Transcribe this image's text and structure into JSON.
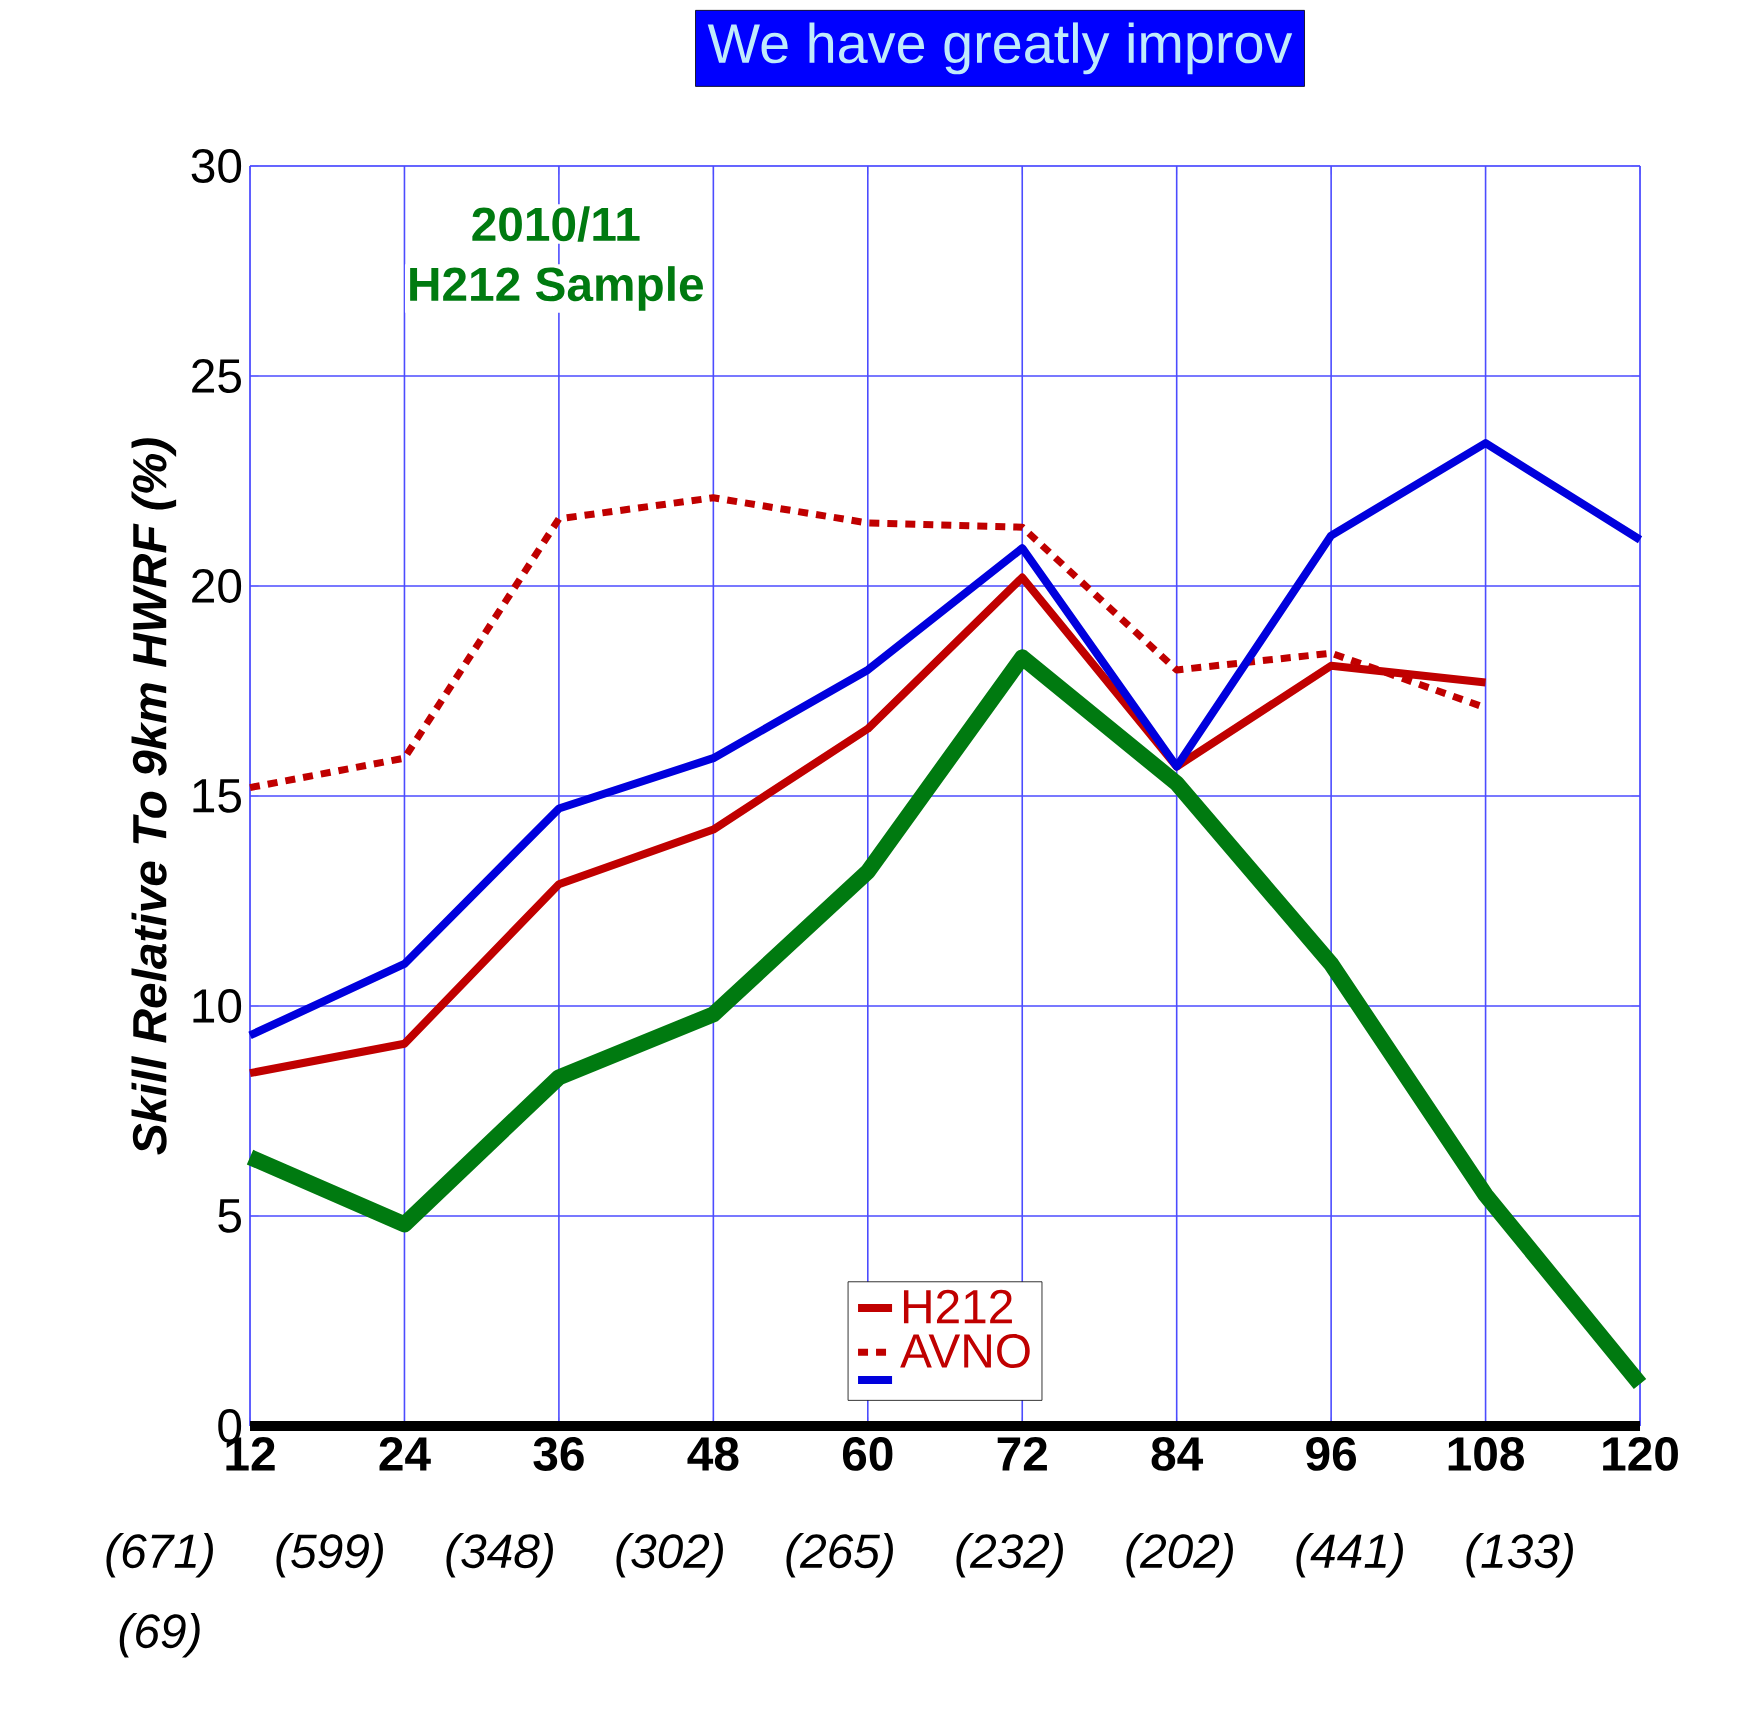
{
  "chart_data": {
    "type": "line",
    "ylabel": "Skill Relative To 9km HWRF (%)",
    "x": [
      12,
      24,
      36,
      48,
      60,
      72,
      84,
      96,
      108,
      120
    ],
    "xlim": [
      12,
      120
    ],
    "xticks": [
      12,
      24,
      36,
      48,
      60,
      72,
      84,
      96,
      108,
      120
    ],
    "ylim": [
      0,
      30
    ],
    "yticks": [
      0,
      5,
      10,
      15,
      20,
      25,
      30
    ],
    "grid": true,
    "legend": "bottom",
    "marker": "none",
    "series": [
      {
        "name": "H212",
        "color": "#c00000",
        "line_style": "solid",
        "values": [
          8.4,
          9.1,
          12.9,
          14.2,
          16.6,
          20.2,
          15.7,
          18.1,
          17.7,
          null
        ]
      },
      {
        "name": "AVNO",
        "color": "#c00000",
        "line_style": "dotted",
        "values": [
          15.2,
          15.9,
          21.6,
          22.1,
          21.5,
          21.4,
          18.0,
          18.4,
          17.1,
          null
        ]
      },
      {
        "color": "#0000dd",
        "line_style": "solid",
        "values": [
          9.3,
          11.0,
          14.7,
          15.9,
          18.0,
          20.9,
          15.7,
          21.2,
          23.4,
          21.1
        ]
      },
      {
        "color": "#007a10",
        "line_style": "solid",
        "values": [
          6.4,
          4.8,
          8.3,
          9.8,
          13.2,
          18.3,
          15.3,
          11.0,
          5.5,
          1.0
        ]
      }
    ],
    "annotations": [
      "2010/11",
      "H212 Sample",
      "We have greatly improv",
      "(671)",
      "(599)",
      "(348)",
      "(302)",
      "(265)",
      "(232)",
      "(202)",
      "(441)",
      "(133)",
      "(69)"
    ]
  }
}
